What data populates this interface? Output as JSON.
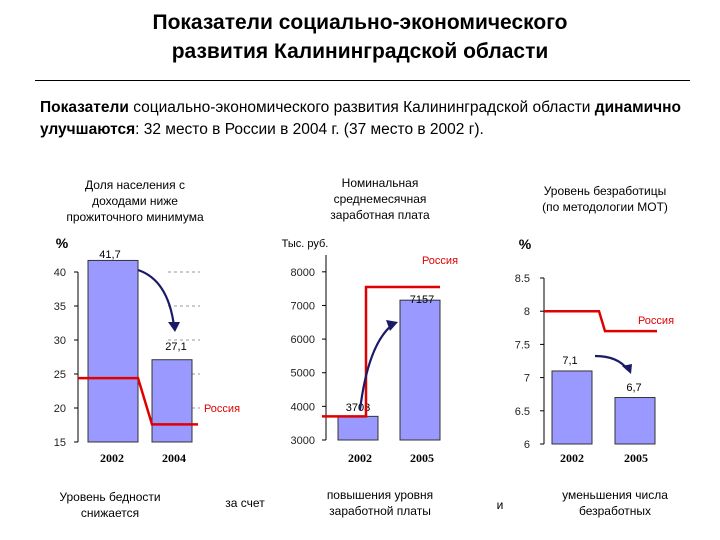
{
  "title_line1": "Показатели социально-экономического",
  "title_line2": "развития Калининградской области",
  "lead": {
    "bold_part": "Показатели",
    "text_part": " социально-экономического развития Калининградской области ",
    "bold_part2": "динамично улучшаются",
    "tail": ": 32 место в России в 2004 г. (37 место в 2002 г)."
  },
  "colors": {
    "bar": "#9999ff",
    "bar_stroke": "#333333",
    "russia_line": "#e00000",
    "arrow": "#1a1a66"
  },
  "chart_data": [
    {
      "type": "bar",
      "title": "Доля населения с доходами ниже прожиточного минимума",
      "title_lines": [
        "Доля населения с",
        "доходами ниже",
        "прожиточного минимума"
      ],
      "ylabel": "%",
      "categories": [
        "2002",
        "2004"
      ],
      "values": [
        41.7,
        27.1
      ],
      "value_labels": [
        "41,7",
        "27,1"
      ],
      "ylim": [
        15,
        40
      ],
      "yticks": [
        15,
        20,
        25,
        30,
        35,
        40
      ],
      "russia": {
        "label": "Россия",
        "values": [
          24.4,
          17.6
        ]
      },
      "bottom_caption": [
        "Уровень бедности",
        "снижается"
      ]
    },
    {
      "type": "bar",
      "title": "Номинальная среднемесячная заработная плата",
      "title_lines": [
        "Номинальная",
        "среднемесячная",
        "заработная плата"
      ],
      "ylabel": "Тыс. руб.",
      "categories": [
        "2002",
        "2005"
      ],
      "values": [
        3703,
        7157
      ],
      "value_labels": [
        "3703",
        "7157"
      ],
      "ylim": [
        3000,
        8500
      ],
      "yticks": [
        3000,
        4000,
        5000,
        6000,
        7000,
        8000
      ],
      "russia": {
        "label": "Россия",
        "values": [
          7900,
          7900
        ]
      },
      "bottom_caption": [
        "повышения уровня",
        "заработной платы"
      ]
    },
    {
      "type": "bar",
      "title": "Уровень безработицы (по методологии МОТ)",
      "title_lines": [
        "Уровень безработицы",
        "(по методологии МОТ)"
      ],
      "ylabel": "%",
      "categories": [
        "2002",
        "2005"
      ],
      "values": [
        7.1,
        6.7
      ],
      "value_labels": [
        "7,1",
        "6,7"
      ],
      "ylim": [
        6,
        8.5
      ],
      "yticks": [
        6,
        6.5,
        7,
        7.5,
        8,
        8.5
      ],
      "ytick_labels": [
        "6",
        "6.5",
        "7",
        "7.5",
        "8",
        "8.5"
      ],
      "russia": {
        "label": "Россия",
        "values": [
          8.0,
          7.7
        ]
      },
      "bottom_caption": [
        "уменьшения числа",
        "безработных"
      ]
    }
  ],
  "connectors": {
    "c1": "за счет",
    "c2": "и"
  }
}
